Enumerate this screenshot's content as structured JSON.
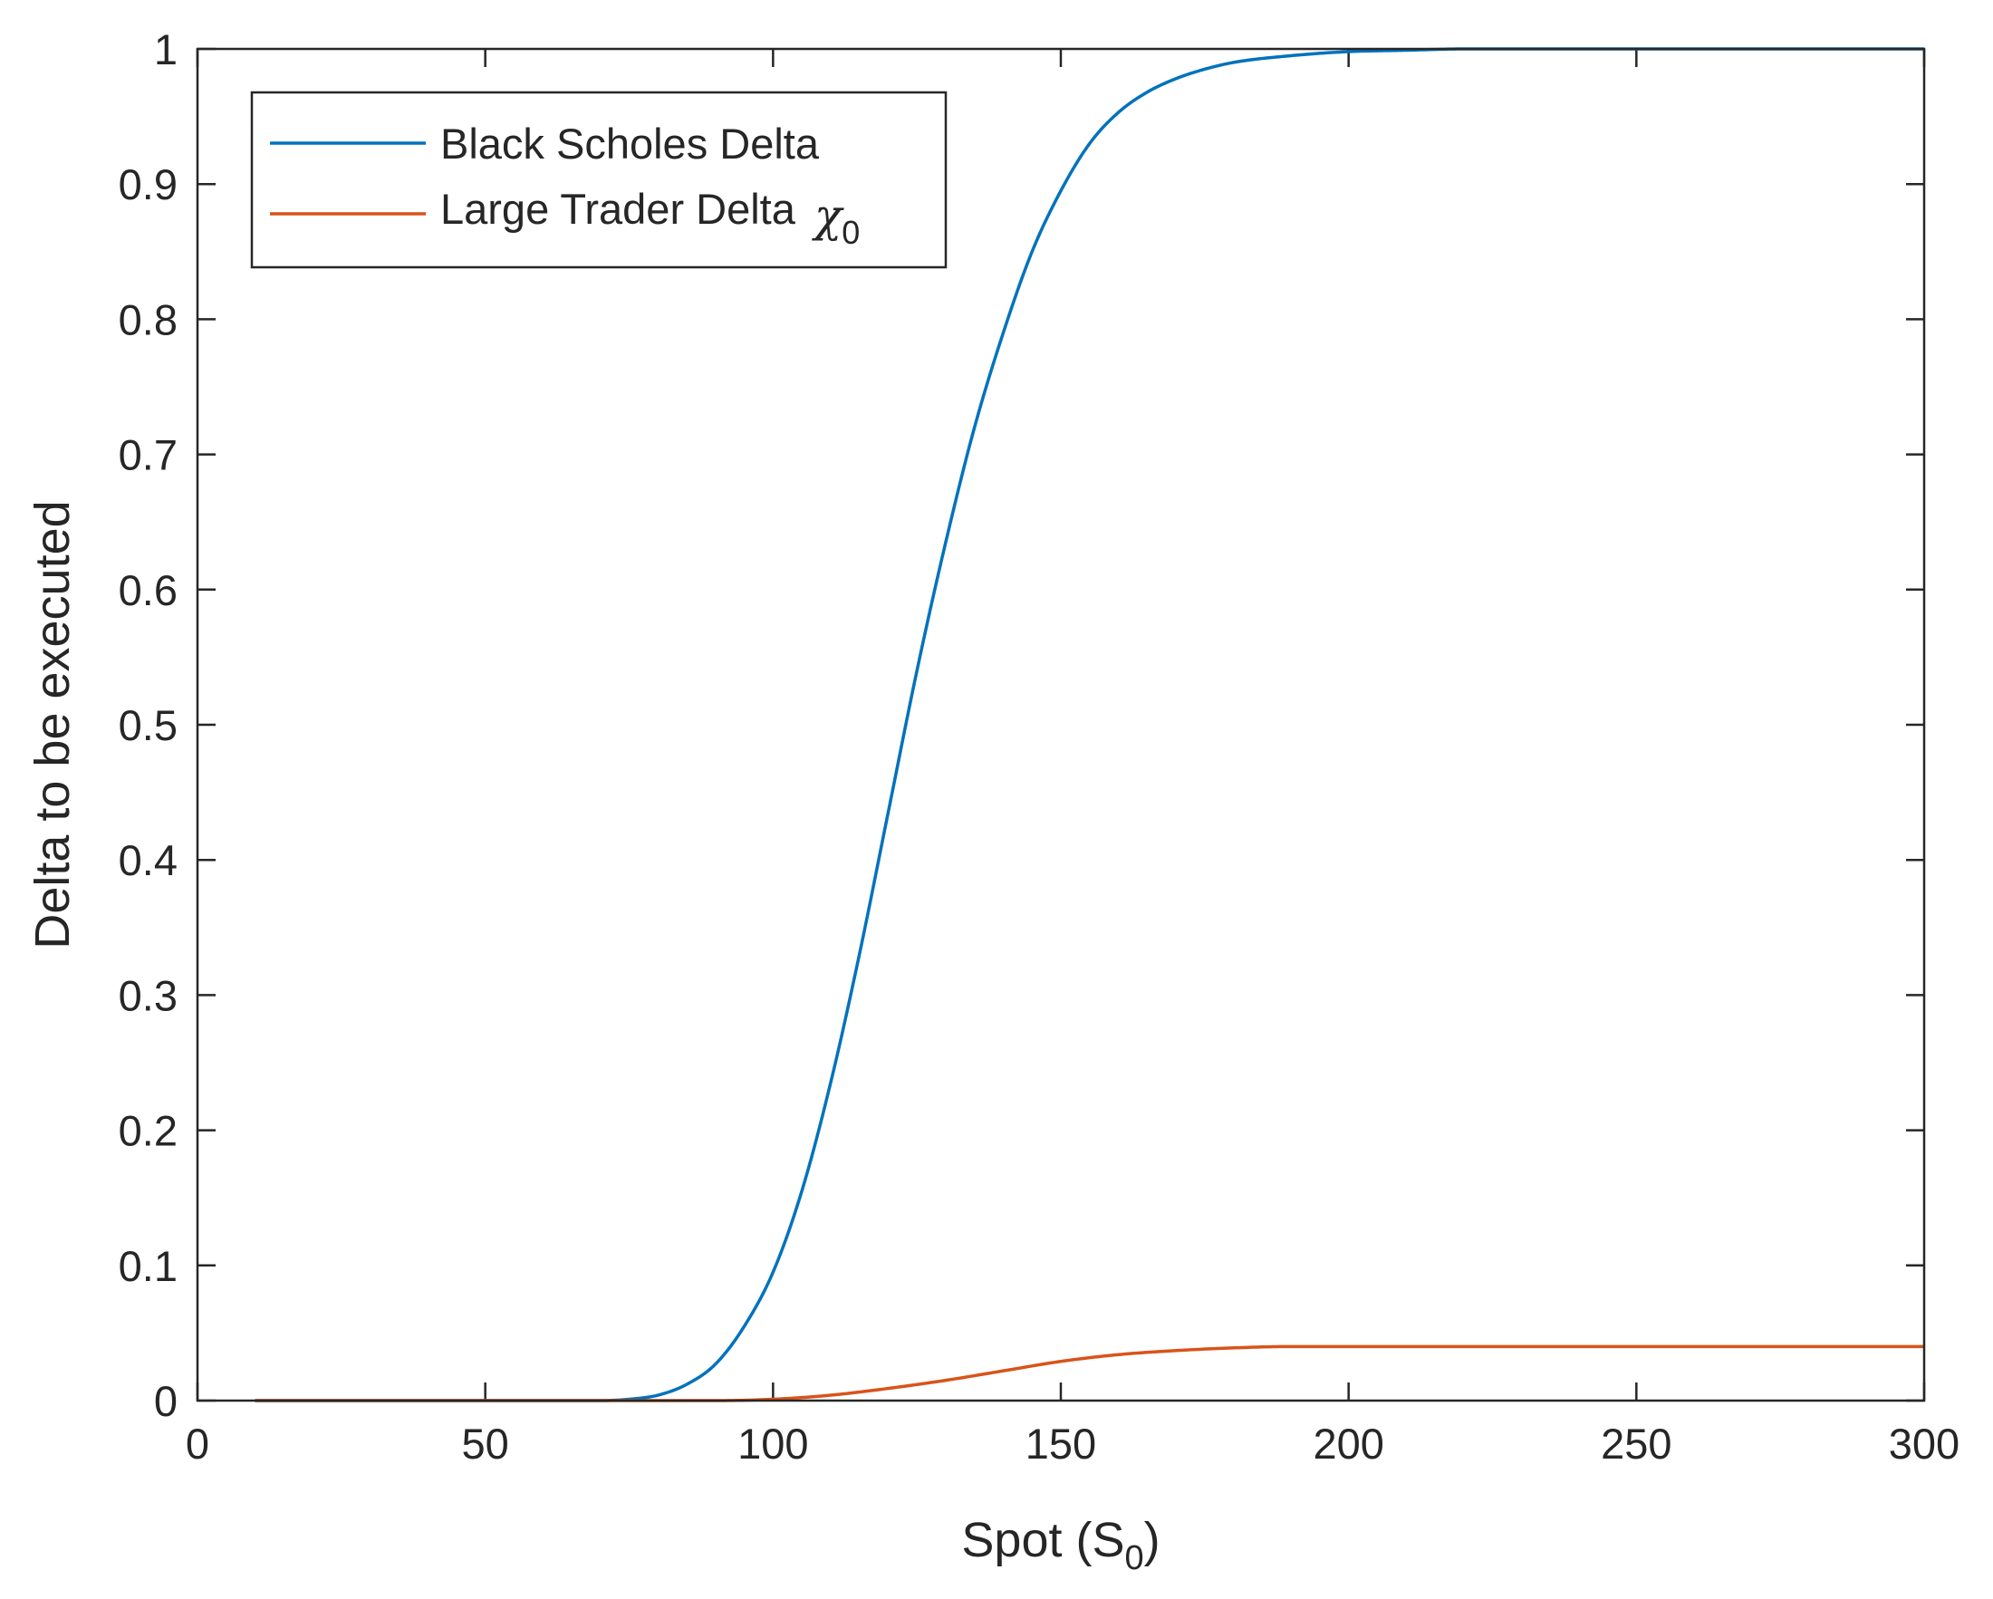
{
  "chart_data": {
    "type": "line",
    "title": "",
    "xlabel": "Spot (S",
    "xlabel_sub": "0",
    "xlabel_close": ")",
    "ylabel": "Delta to be executed",
    "xlim": [
      0,
      300
    ],
    "ylim": [
      0,
      1
    ],
    "xticks": [
      "0",
      "50",
      "100",
      "150",
      "200",
      "250",
      "300"
    ],
    "yticks": [
      "0",
      "0.1",
      "0.2",
      "0.3",
      "0.4",
      "0.5",
      "0.6",
      "0.7",
      "0.8",
      "0.9",
      "1"
    ],
    "grid": false,
    "legend_position": "top-left",
    "series": [
      {
        "name": "Black Scholes Delta",
        "color": "#0072BD",
        "x": [
          10,
          50,
          70,
          75,
          80,
          85,
          90,
          95,
          100,
          105,
          110,
          115,
          120,
          125,
          130,
          135,
          140,
          145,
          150,
          155,
          160,
          165,
          170,
          175,
          180,
          190,
          200,
          210,
          220,
          250,
          300
        ],
        "y": [
          0,
          0,
          0,
          0.001,
          0.004,
          0.012,
          0.027,
          0.055,
          0.095,
          0.155,
          0.235,
          0.33,
          0.435,
          0.54,
          0.635,
          0.72,
          0.79,
          0.85,
          0.895,
          0.93,
          0.953,
          0.968,
          0.978,
          0.985,
          0.99,
          0.995,
          0.998,
          0.999,
          1,
          1,
          1
        ]
      },
      {
        "name": "Large Trader Delta ",
        "name_symbol": "χ",
        "name_sub": "0",
        "color": "#D95319",
        "x": [
          10,
          50,
          90,
          100,
          110,
          120,
          130,
          140,
          150,
          160,
          170,
          180,
          190,
          200,
          250,
          300
        ],
        "y": [
          0,
          0,
          0,
          0.001,
          0.004,
          0.009,
          0.015,
          0.022,
          0.029,
          0.034,
          0.037,
          0.039,
          0.04,
          0.04,
          0.04,
          0.04
        ]
      }
    ]
  }
}
